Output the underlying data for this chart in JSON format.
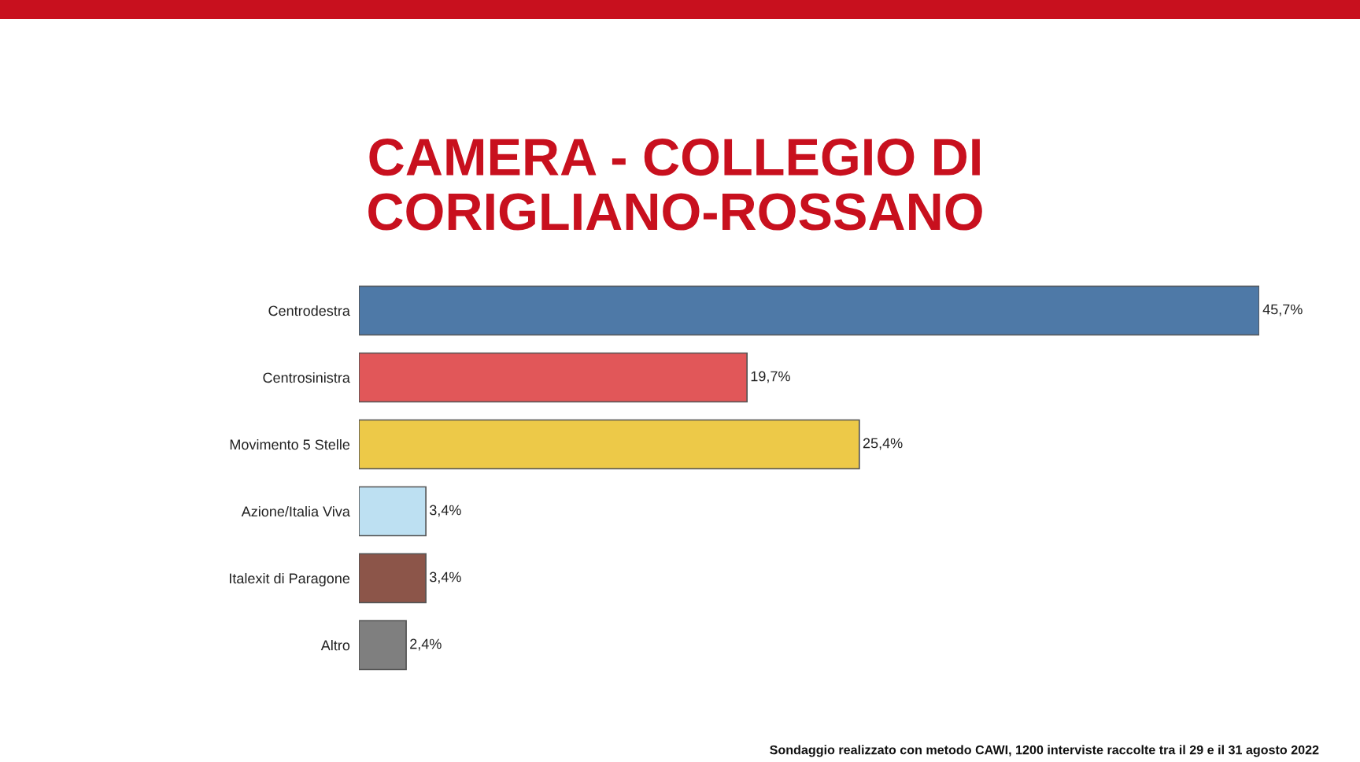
{
  "chart_data": {
    "type": "bar",
    "orientation": "horizontal",
    "title": "CAMERA - COLLEGIO DI\nCORIGLIANO-ROSSANO",
    "categories": [
      "Centrodestra",
      "Centrosinistra",
      "Movimento 5 Stelle",
      "Azione/Italia Viva",
      "Italexit di Paragone",
      "Altro"
    ],
    "values": [
      45.7,
      19.7,
      25.4,
      3.4,
      3.4,
      2.4
    ],
    "colors": [
      "#4e79a7",
      "#e15759",
      "#edc948",
      "#bde0f2",
      "#8c5549",
      "#7f7f7f"
    ],
    "value_labels": [
      "45,7%",
      "19,7%",
      "25,4%",
      "3,4%",
      "3,4%",
      "2,4%"
    ],
    "tick_labels": "y",
    "annotations": [
      "Sondaggio realizzato con metodo CAWI, 1200 interviste raccolte tra il 29 e il 31 agosto 2022"
    ]
  }
}
